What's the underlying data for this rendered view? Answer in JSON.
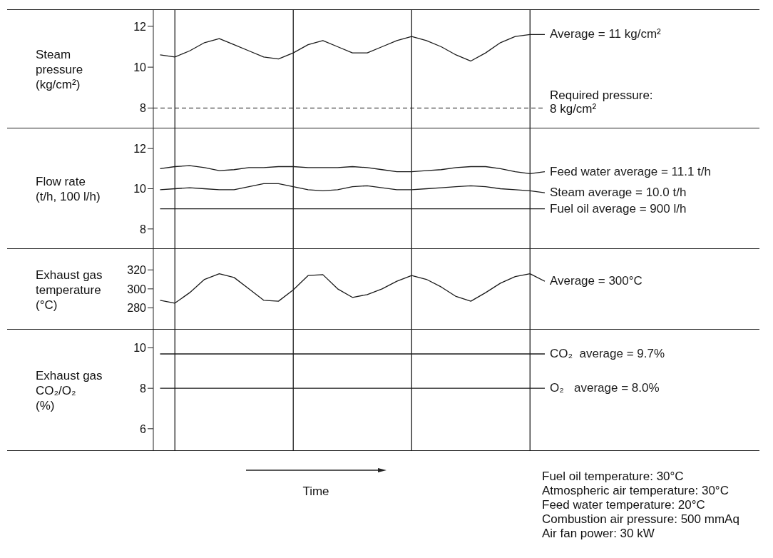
{
  "chart_data": [
    {
      "type": "line",
      "ylabel": "Steam\npressure\n(kg/cm²)",
      "categories": [
        null,
        null,
        null,
        null,
        null,
        null,
        null,
        null,
        null,
        null,
        null,
        null,
        null,
        null,
        null,
        null,
        null,
        null,
        null,
        null,
        null,
        null,
        null,
        null,
        null,
        null,
        null
      ],
      "ylim": [
        7,
        12.8
      ],
      "yticks": [
        8,
        10,
        12
      ],
      "tick_labels": "y",
      "grid": "x",
      "series": [
        {
          "name": "Average = 11 kg/cm²",
          "color": "#1a1a1a",
          "values": [
            10.6,
            10.5,
            10.8,
            11.2,
            11.4,
            11.1,
            10.8,
            10.5,
            10.4,
            10.7,
            11.1,
            11.3,
            11.0,
            10.7,
            10.7,
            11.0,
            11.3,
            11.5,
            11.3,
            11.0,
            10.6,
            10.3,
            10.7,
            11.2,
            11.5,
            11.6,
            11.6
          ]
        }
      ],
      "ref_lines": [
        {
          "axis": "y",
          "value": 8,
          "label": "Required pressure:\n8 kg/cm²",
          "line_style": "dashed",
          "color": "#1a1a1a"
        }
      ]
    },
    {
      "type": "line",
      "ylabel": "Flow rate\n(t/h, 100 l/h)",
      "categories": [
        null,
        null,
        null,
        null,
        null,
        null,
        null,
        null,
        null,
        null,
        null,
        null,
        null,
        null,
        null,
        null,
        null,
        null,
        null,
        null,
        null,
        null,
        null,
        null,
        null,
        null,
        null
      ],
      "ylim": [
        7,
        13
      ],
      "yticks": [
        8,
        10,
        12
      ],
      "tick_labels": "y",
      "grid": "x",
      "series": [
        {
          "name": "Feed water average = 11.1 t/h",
          "color": "#1a1a1a",
          "values": [
            11.0,
            11.1,
            11.15,
            11.05,
            10.9,
            10.95,
            11.05,
            11.05,
            11.1,
            11.1,
            11.05,
            11.05,
            11.05,
            11.1,
            11.05,
            10.95,
            10.85,
            10.85,
            10.9,
            10.95,
            11.05,
            11.1,
            11.1,
            11.0,
            10.85,
            10.75,
            10.85
          ]
        },
        {
          "name": "Steam average = 10.0 t/h",
          "color": "#1a1a1a",
          "values": [
            9.95,
            10.0,
            10.05,
            10.0,
            9.95,
            9.95,
            10.1,
            10.25,
            10.25,
            10.1,
            9.95,
            9.9,
            9.95,
            10.1,
            10.15,
            10.05,
            9.95,
            9.95,
            10.0,
            10.05,
            10.1,
            10.15,
            10.1,
            10.0,
            9.95,
            9.9,
            9.8
          ]
        },
        {
          "name": "Fuel oil average = 900 l/h",
          "color": "#1a1a1a",
          "values": [
            9,
            9,
            9,
            9,
            9,
            9,
            9,
            9,
            9,
            9,
            9,
            9,
            9,
            9,
            9,
            9,
            9,
            9,
            9,
            9,
            9,
            9,
            9,
            9,
            9,
            9,
            9
          ]
        }
      ]
    },
    {
      "type": "line",
      "ylabel": "Exhaust gas\ntemperature\n(°C)",
      "categories": [
        null,
        null,
        null,
        null,
        null,
        null,
        null,
        null,
        null,
        null,
        null,
        null,
        null,
        null,
        null,
        null,
        null,
        null,
        null,
        null,
        null,
        null,
        null,
        null,
        null,
        null,
        null
      ],
      "ylim": [
        257,
        342
      ],
      "yticks": [
        280,
        300,
        320
      ],
      "tick_labels": "y",
      "grid": "x",
      "series": [
        {
          "name": "Average = 300°C",
          "color": "#1a1a1a",
          "values": [
            288,
            285,
            296,
            310,
            316,
            312,
            300,
            288,
            287,
            299,
            314,
            315,
            300,
            291,
            294,
            300,
            308,
            314,
            310,
            302,
            292,
            287,
            296,
            306,
            313,
            316,
            308
          ]
        }
      ]
    },
    {
      "type": "line",
      "ylabel": "Exhaust gas\nCO₂/O₂\n(%)",
      "xlabel": "Time",
      "categories": [
        null,
        null,
        null,
        null,
        null,
        null,
        null,
        null,
        null,
        null,
        null,
        null,
        null,
        null,
        null,
        null,
        null,
        null,
        null,
        null,
        null,
        null,
        null,
        null,
        null,
        null,
        null
      ],
      "ylim": [
        4.9,
        10.9
      ],
      "yticks": [
        6,
        8,
        10
      ],
      "tick_labels": "y",
      "grid": "x",
      "series": [
        {
          "name": "CO₂  average = 9.7%",
          "color": "#1a1a1a",
          "values": [
            9.7,
            9.7,
            9.7,
            9.7,
            9.7,
            9.7,
            9.7,
            9.7,
            9.7,
            9.7,
            9.7,
            9.7,
            9.7,
            9.7,
            9.7,
            9.7,
            9.7,
            9.7,
            9.7,
            9.7,
            9.7,
            9.7,
            9.7,
            9.7,
            9.7,
            9.7,
            9.7
          ]
        },
        {
          "name": "O₂   average = 8.0%",
          "color": "#1a1a1a",
          "values": [
            8.0,
            8.0,
            8.0,
            8.0,
            8.0,
            8.0,
            8.0,
            8.0,
            8.0,
            8.0,
            8.0,
            8.0,
            8.0,
            8.0,
            8.0,
            8.0,
            8.0,
            8.0,
            8.0,
            8.0,
            8.0,
            8.0,
            8.0,
            8.0,
            8.0,
            8.0,
            8.0
          ]
        }
      ],
      "annotations": [
        "Fuel oil temperature: 30°C",
        "Atmospheric air temperature: 30°C",
        "Feed water temperature: 20°C",
        "Combustion air pressure: 500 mmAq",
        "Air fan power: 30 kW"
      ]
    }
  ]
}
